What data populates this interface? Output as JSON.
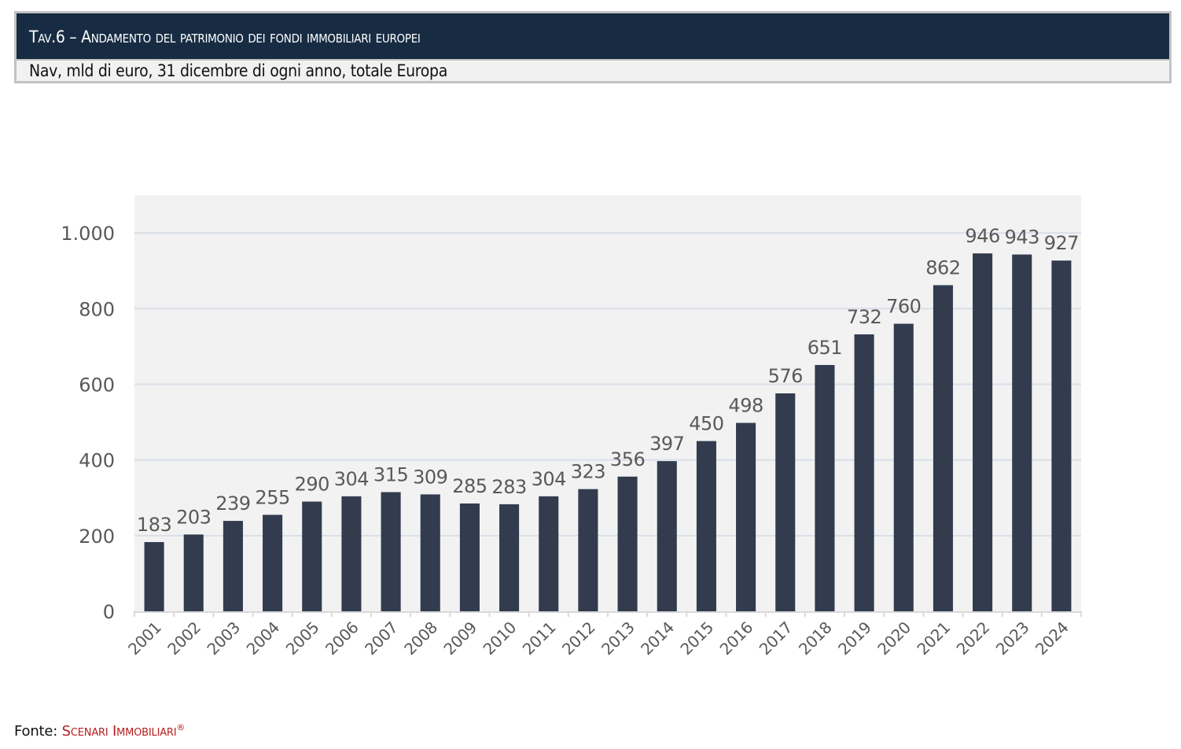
{
  "header": {
    "tav_label": "Tav.6",
    "separator": " – ",
    "title": "Andamento del patrimonio dei fondi immobiliari europei",
    "subtitle": "Nav, mld di euro, 31 dicembre di ogni anno, totale Europa"
  },
  "source": {
    "label": "Fonte:",
    "brand": "Scenari Immobiliari",
    "registered_mark": "®"
  },
  "colors": {
    "title_bar": "#172c43",
    "subtitle_bar": "#f1f1f1",
    "plot_background": "#f2f2f2",
    "bar": "#323c4e",
    "gridline": "#d9dee8",
    "axis_text": "#595959",
    "brand": "#b81d1f"
  },
  "chart_data": {
    "type": "bar",
    "title": "Andamento del patrimonio dei fondi immobiliari europei",
    "subtitle": "Nav, mld di euro, 31 dicembre di ogni anno, totale Europa",
    "xlabel": "",
    "ylabel": "",
    "categories": [
      "2001",
      "2002",
      "2003",
      "2004",
      "2005",
      "2006",
      "2007",
      "2008",
      "2009",
      "2010",
      "2011",
      "2012",
      "2013",
      "2014",
      "2015",
      "2016",
      "2017",
      "2018",
      "2019",
      "2020",
      "2021",
      "2022",
      "2023",
      "2024"
    ],
    "values": [
      183,
      203,
      239,
      255,
      290,
      304,
      315,
      309,
      285,
      283,
      304,
      323,
      356,
      397,
      450,
      498,
      576,
      651,
      732,
      760,
      862,
      946,
      943,
      927
    ],
    "ylim": [
      0,
      1100
    ],
    "yticks": [
      0,
      200,
      400,
      600,
      800,
      1000
    ],
    "ytick_labels": [
      "0",
      "200",
      "400",
      "600",
      "800",
      "1.000"
    ],
    "grid": true,
    "legend": "none",
    "data_labels": true,
    "x_tick_rotation": "-45"
  }
}
